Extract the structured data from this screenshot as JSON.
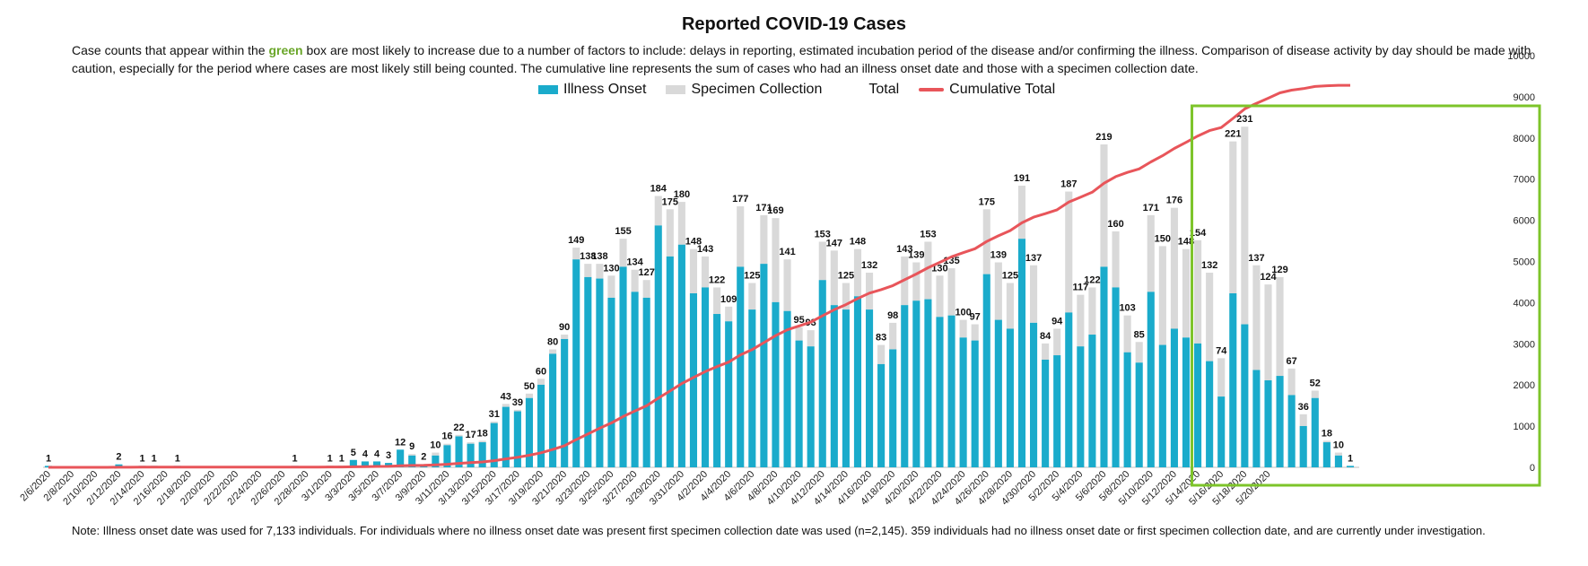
{
  "title": "Reported COVID-19 Cases",
  "description": {
    "part1": "Case counts that appear within the ",
    "green_word": "green",
    "part2": " box are most likely to increase due to a number of factors to include: delays in reporting, estimated incubation period of the disease and/or confirming the illness. Comparison of disease activity by day should be made with caution, especially for the period where cases are most likely still being counted. The cumulative line represents the sum of cases who had an illness onset date and those with a specimen collection date."
  },
  "legend": {
    "illness_onset": "Illness Onset",
    "specimen_collection": "Specimen Collection",
    "total": "Total",
    "cumulative_total": "Cumulative Total"
  },
  "footnote": "Note: Illness onset date was used for 7,133 individuals. For individuals where no illness onset date was present first specimen collection date was used (n=2,145). 359 individuals had no illness onset date or first specimen collection date, and are currently under investigation.",
  "colors": {
    "illness_onset": "#1aabcb",
    "specimen_collection": "#d9d9d9",
    "cumulative": "#e8555a",
    "highlight_box": "#7dc42a"
  },
  "chart_data": {
    "type": "bar",
    "stacked": true,
    "title": "Reported COVID-19 Cases",
    "x_tick_labels": [
      "2/6/2020",
      "2/8/2020",
      "2/10/2020",
      "2/12/2020",
      "2/14/2020",
      "2/16/2020",
      "2/18/2020",
      "2/20/2020",
      "2/22/2020",
      "2/24/2020",
      "2/26/2020",
      "2/28/2020",
      "3/1/2020",
      "3/3/2020",
      "3/5/2020",
      "3/7/2020",
      "3/9/2020",
      "3/11/2020",
      "3/13/2020",
      "3/15/2020",
      "3/17/2020",
      "3/19/2020",
      "3/21/2020",
      "3/23/2020",
      "3/25/2020",
      "3/27/2020",
      "3/29/2020",
      "3/31/2020",
      "4/2/2020",
      "4/4/2020",
      "4/6/2020",
      "4/8/2020",
      "4/10/2020",
      "4/12/2020",
      "4/14/2020",
      "4/16/2020",
      "4/18/2020",
      "4/20/2020",
      "4/22/2020",
      "4/24/2020",
      "4/26/2020",
      "4/28/2020",
      "4/30/2020",
      "5/2/2020",
      "5/4/2020",
      "5/6/2020",
      "5/8/2020",
      "5/10/2020",
      "5/12/2020",
      "5/14/2020",
      "5/16/2020",
      "5/18/2020",
      "5/20/2020"
    ],
    "y_right_ticks": [
      0,
      1000,
      2000,
      3000,
      4000,
      5000,
      6000,
      7000,
      8000,
      9000,
      10000
    ],
    "y_right_range": [
      0,
      10000
    ],
    "bar_axis_range": [
      0,
      300
    ],
    "start_date": "2/6/2020",
    "totals": [
      1,
      0,
      0,
      0,
      0,
      0,
      2,
      0,
      1,
      1,
      0,
      1,
      0,
      0,
      0,
      0,
      0,
      0,
      0,
      0,
      0,
      1,
      0,
      0,
      1,
      1,
      5,
      4,
      4,
      3,
      12,
      9,
      2,
      10,
      16,
      22,
      17,
      18,
      31,
      43,
      39,
      50,
      60,
      80,
      90,
      149,
      138,
      138,
      130,
      155,
      134,
      127,
      184,
      175,
      180,
      148,
      143,
      122,
      109,
      177,
      125,
      171,
      169,
      141,
      95,
      93,
      153,
      147,
      125,
      148,
      132,
      83,
      98,
      143,
      139,
      153,
      130,
      135,
      100,
      97,
      175,
      139,
      125,
      191,
      137,
      84,
      94,
      187,
      117,
      122,
      219,
      160,
      103,
      85,
      171,
      150,
      176,
      148,
      154,
      132,
      74,
      221,
      231,
      137,
      124,
      129,
      67,
      36,
      52,
      18,
      10,
      1
    ],
    "illness_onset": [
      1,
      0,
      0,
      0,
      0,
      0,
      2,
      0,
      1,
      1,
      0,
      1,
      0,
      0,
      0,
      0,
      0,
      0,
      0,
      0,
      0,
      1,
      0,
      0,
      1,
      1,
      5,
      4,
      4,
      3,
      12,
      8,
      2,
      8,
      15,
      21,
      16,
      17,
      30,
      41,
      38,
      47,
      56,
      77,
      87,
      141,
      129,
      128,
      115,
      136,
      119,
      115,
      164,
      143,
      151,
      118,
      122,
      104,
      99,
      136,
      107,
      138,
      112,
      106,
      86,
      82,
      127,
      110,
      107,
      116,
      107,
      70,
      80,
      110,
      113,
      114,
      102,
      103,
      88,
      86,
      131,
      100,
      94,
      155,
      98,
      73,
      76,
      105,
      82,
      90,
      136,
      122,
      78,
      71,
      119,
      83,
      94,
      88,
      84,
      72,
      48,
      118,
      97,
      66,
      59,
      62,
      49,
      28,
      47,
      17,
      8,
      1
    ],
    "cumulative_total": [
      1,
      1,
      1,
      1,
      1,
      1,
      3,
      3,
      4,
      5,
      5,
      6,
      6,
      6,
      6,
      6,
      6,
      6,
      6,
      6,
      6,
      7,
      7,
      7,
      8,
      9,
      14,
      18,
      22,
      25,
      37,
      46,
      48,
      58,
      74,
      96,
      113,
      131,
      162,
      205,
      244,
      294,
      354,
      434,
      524,
      673,
      811,
      949,
      1079,
      1234,
      1368,
      1495,
      1679,
      1854,
      2034,
      2182,
      2325,
      2447,
      2556,
      2733,
      2858,
      3029,
      3198,
      3339,
      3434,
      3527,
      3680,
      3827,
      3952,
      4100,
      4232,
      4315,
      4413,
      4556,
      4695,
      4848,
      4978,
      5113,
      5213,
      5310,
      5485,
      5624,
      5749,
      5940,
      6077,
      6161,
      6255,
      6442,
      6559,
      6681,
      6900,
      7060,
      7163,
      7248,
      7419,
      7569,
      7745,
      7893,
      8047,
      8179,
      8253,
      8474,
      8705,
      8842,
      8966,
      9095,
      9162,
      9198,
      9250,
      9268,
      9278,
      9279
    ]
  }
}
